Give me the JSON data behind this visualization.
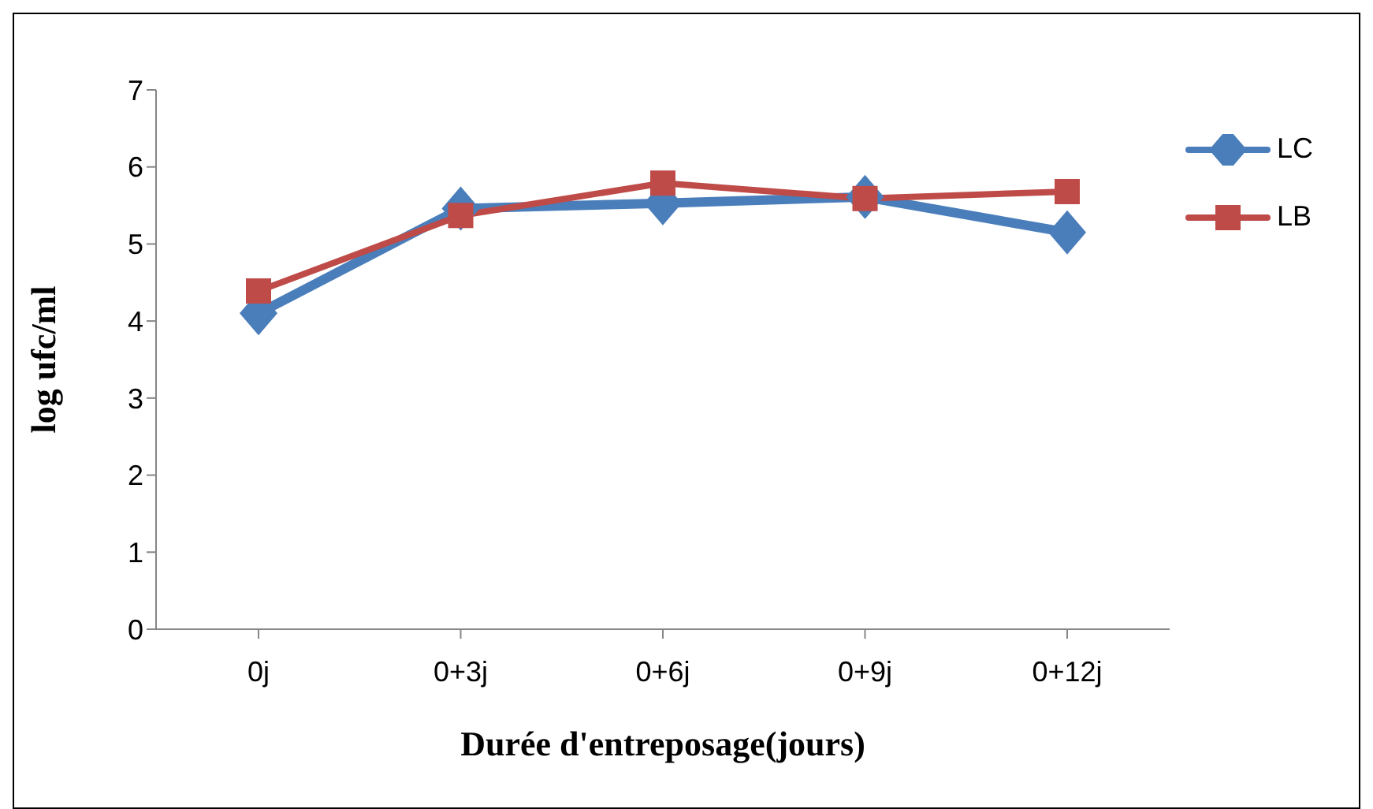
{
  "chart_data": {
    "type": "line",
    "xlabel": "Durée d'entreposage(jours)",
    "ylabel": "log ufc/ml",
    "categories": [
      "0j",
      "0+3j",
      "0+6j",
      "0+9j",
      "0+12j"
    ],
    "series": [
      {
        "name": "LC",
        "color": "#4a7ebb",
        "marker": "diamond",
        "values": [
          4.1,
          5.46,
          5.53,
          5.61,
          5.15
        ]
      },
      {
        "name": "LB",
        "color": "#be4b48",
        "marker": "square",
        "values": [
          4.39,
          5.37,
          5.79,
          5.59,
          5.68
        ]
      }
    ],
    "ylim": [
      0,
      7
    ],
    "yticks": [
      0,
      1,
      2,
      3,
      4,
      5,
      6,
      7
    ],
    "grid": false,
    "legend": "right"
  }
}
